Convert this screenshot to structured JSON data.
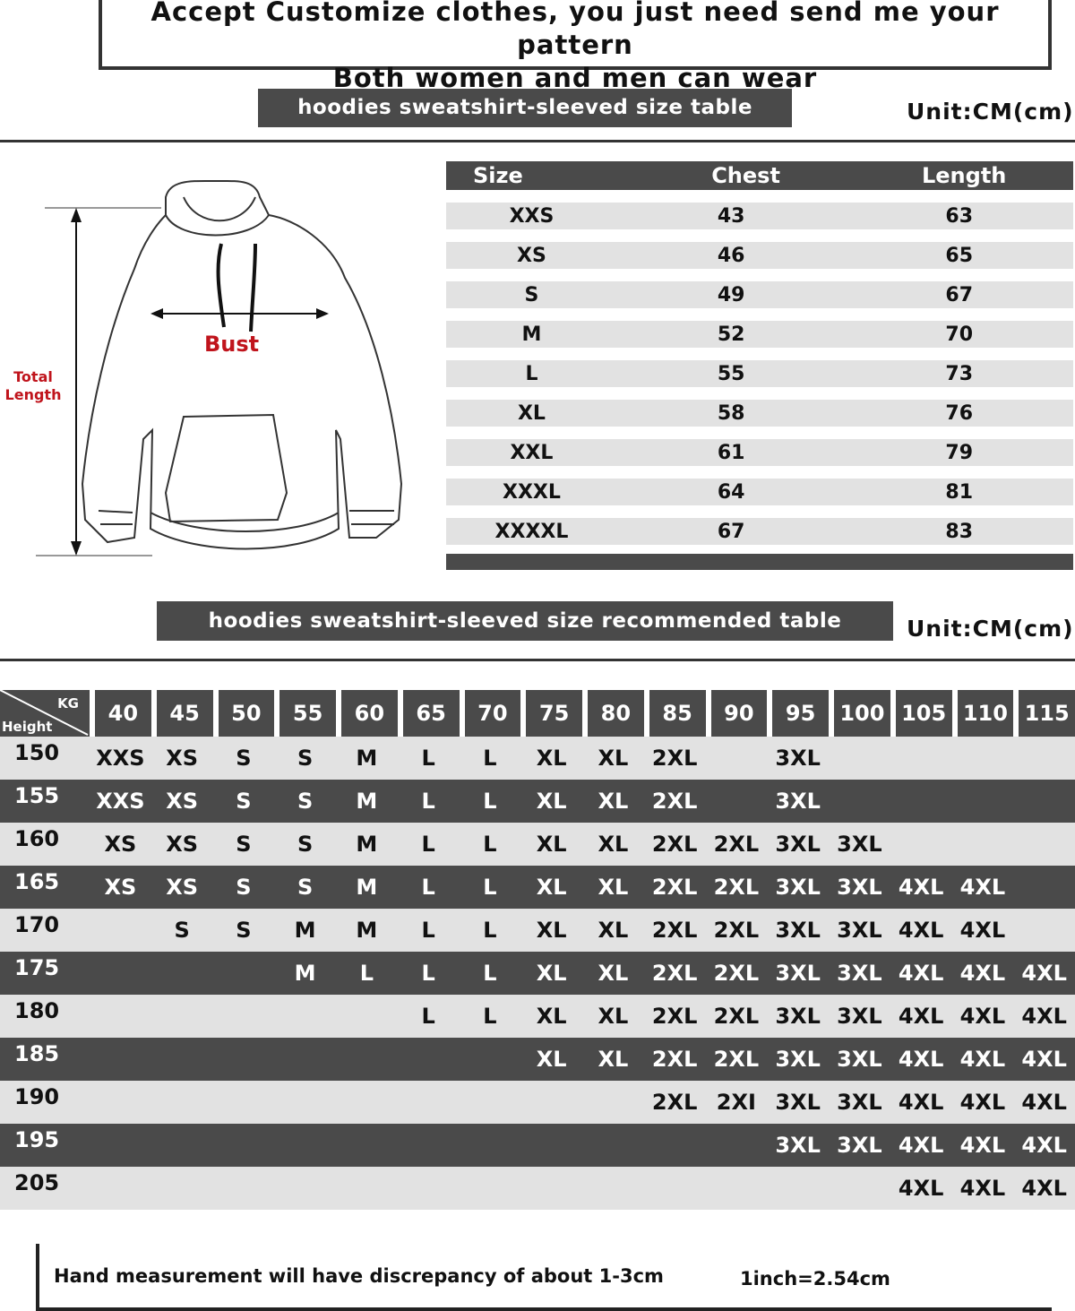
{
  "banner": {
    "line1": "Accept Customize clothes, you just need send me your pattern",
    "line2": "Both women and men can wear"
  },
  "size_table": {
    "title": "hoodies sweatshirt-sleeved size  table",
    "unit": "Unit:CM(cm)",
    "headers": [
      "Size",
      "Chest",
      "Length"
    ],
    "rows": [
      [
        "XXS",
        "43",
        "63"
      ],
      [
        "XS",
        "46",
        "65"
      ],
      [
        "S",
        "49",
        "67"
      ],
      [
        "M",
        "52",
        "70"
      ],
      [
        "L",
        "55",
        "73"
      ],
      [
        "XL",
        "58",
        "76"
      ],
      [
        "XXL",
        "61",
        "79"
      ],
      [
        "XXXL",
        "64",
        "81"
      ],
      [
        "XXXXL",
        "67",
        "83"
      ]
    ]
  },
  "diagram": {
    "bust_label": "Bust",
    "length_label_1": "Total",
    "length_label_2": "Length",
    "bust_color": "#c0141c"
  },
  "recommended": {
    "title": "hoodies sweatshirt-sleeved size recommended table",
    "unit": "Unit:CM(cm)",
    "corner_kg": "KG",
    "corner_height": "Height",
    "weights": [
      "40",
      "45",
      "50",
      "55",
      "60",
      "65",
      "70",
      "75",
      "80",
      "85",
      "90",
      "95",
      "100",
      "105",
      "110",
      "115"
    ],
    "rows": [
      {
        "height": "150",
        "sizes": [
          "XXS",
          "XS",
          "S",
          "S",
          "M",
          "L",
          "L",
          "XL",
          "XL",
          "2XL",
          "",
          "3XL",
          "",
          "",
          "",
          ""
        ]
      },
      {
        "height": "155",
        "sizes": [
          "XXS",
          "XS",
          "S",
          "S",
          "M",
          "L",
          "L",
          "XL",
          "XL",
          "2XL",
          "",
          "3XL",
          "",
          "",
          "",
          ""
        ]
      },
      {
        "height": "160",
        "sizes": [
          "XS",
          "XS",
          "S",
          "S",
          "M",
          "L",
          "L",
          "XL",
          "XL",
          "2XL",
          "2XL",
          "3XL",
          "3XL",
          "",
          "",
          ""
        ]
      },
      {
        "height": "165",
        "sizes": [
          "XS",
          "XS",
          "S",
          "S",
          "M",
          "L",
          "L",
          "XL",
          "XL",
          "2XL",
          "2XL",
          "3XL",
          "3XL",
          "4XL",
          "4XL",
          ""
        ]
      },
      {
        "height": "170",
        "sizes": [
          "",
          "S",
          "S",
          "M",
          "M",
          "L",
          "L",
          "XL",
          "XL",
          "2XL",
          "2XL",
          "3XL",
          "3XL",
          "4XL",
          "4XL",
          ""
        ]
      },
      {
        "height": "175",
        "sizes": [
          "",
          "",
          "",
          "M",
          "L",
          "L",
          "L",
          "XL",
          "XL",
          "2XL",
          "2XL",
          "3XL",
          "3XL",
          "4XL",
          "4XL",
          "4XL"
        ]
      },
      {
        "height": "180",
        "sizes": [
          "",
          "",
          "",
          "",
          "",
          "L",
          "L",
          "XL",
          "XL",
          "2XL",
          "2XL",
          "3XL",
          "3XL",
          "4XL",
          "4XL",
          "4XL"
        ]
      },
      {
        "height": "185",
        "sizes": [
          "",
          "",
          "",
          "",
          "",
          "",
          "",
          "XL",
          "XL",
          "2XL",
          "2XL",
          "3XL",
          "3XL",
          "4XL",
          "4XL",
          "4XL"
        ]
      },
      {
        "height": "190",
        "sizes": [
          "",
          "",
          "",
          "",
          "",
          "",
          "",
          "",
          "",
          "2XL",
          "2XI",
          "3XL",
          "3XL",
          "4XL",
          "4XL",
          "4XL"
        ]
      },
      {
        "height": "195",
        "sizes": [
          "",
          "",
          "",
          "",
          "",
          "",
          "",
          "",
          "",
          "",
          "",
          "3XL",
          "3XL",
          "4XL",
          "4XL",
          "4XL"
        ]
      },
      {
        "height": "205",
        "sizes": [
          "",
          "",
          "",
          "",
          "",
          "",
          "",
          "",
          "",
          "",
          "",
          "",
          "",
          "4XL",
          "4XL",
          "4XL"
        ]
      }
    ]
  },
  "footer": {
    "note": "Hand measurement will have discrepancy of about  1-3cm",
    "conversion": "1inch=2.54cm"
  }
}
